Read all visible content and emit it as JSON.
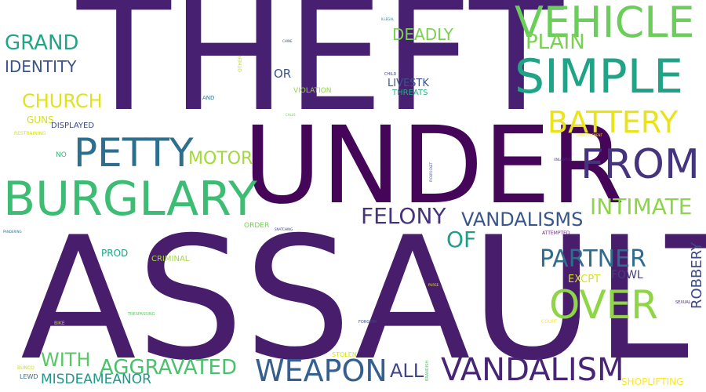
{
  "words": [
    {
      "text": "THEFT",
      "color": "#482072"
    },
    {
      "text": "ASSAULT",
      "color": "#471d6c"
    },
    {
      "text": "UNDER",
      "color": "#450559"
    },
    {
      "text": "VEHICLE",
      "color": "#6cce5a"
    },
    {
      "text": "SIMPLE",
      "color": "#20a386"
    },
    {
      "text": "PLAIN",
      "color": "#7ad151"
    },
    {
      "text": "GRAND",
      "color": "#21a585"
    },
    {
      "text": "DEADLY",
      "color": "#7ad151"
    },
    {
      "text": "IDENTITY",
      "color": "#3b528b"
    },
    {
      "text": "CHURCH",
      "color": "#e0e31c"
    },
    {
      "text": "BATTERY",
      "color": "#e8e419"
    },
    {
      "text": "PETTY",
      "color": "#2d6f8e"
    },
    {
      "text": "FROM",
      "color": "#46337e"
    },
    {
      "text": "BURGLARY",
      "color": "#3dbc74"
    },
    {
      "text": "MOTOR",
      "color": "#a2da37"
    },
    {
      "text": "INTIMATE",
      "color": "#8bd646"
    },
    {
      "text": "FELONY",
      "color": "#46337e"
    },
    {
      "text": "VANDALISMS",
      "color": "#39568c"
    },
    {
      "text": "OF",
      "color": "#1f9e89"
    },
    {
      "text": "PARTNER",
      "color": "#2f6c8e"
    },
    {
      "text": "OVER",
      "color": "#8ed645"
    },
    {
      "text": "WEAPON",
      "color": "#355f8d"
    },
    {
      "text": "VANDALISM",
      "color": "#482475"
    },
    {
      "text": "AGGRAVATED",
      "color": "#4ac16d"
    },
    {
      "text": "WITH",
      "color": "#58c765"
    },
    {
      "text": "ALL",
      "color": "#404588"
    },
    {
      "text": "MISDEAMEANOR",
      "color": "#1f988b"
    },
    {
      "text": "ROBBERY",
      "color": "#3e4a89"
    },
    {
      "text": "SHOPLIFTING",
      "color": "#fde725"
    },
    {
      "text": "EXCPT",
      "color": "#d2e21b"
    },
    {
      "text": "FOWL",
      "color": "#433e85"
    },
    {
      "text": "LIVESTK",
      "color": "#3a538b"
    },
    {
      "text": "OR",
      "color": "#3b528b"
    },
    {
      "text": "THREATS",
      "color": "#27ad81"
    },
    {
      "text": "VIOLATION",
      "color": "#95d840"
    },
    {
      "text": "GUNS",
      "color": "#d8e219"
    },
    {
      "text": "DISPLAYED",
      "color": "#3e4989"
    },
    {
      "text": "PROD",
      "color": "#1fa088"
    },
    {
      "text": "CRIMINAL",
      "color": "#a5db36"
    },
    {
      "text": "ORDER",
      "color": "#73d056"
    },
    {
      "text": "NO",
      "color": "#35b779"
    },
    {
      "text": "RESTRAINING",
      "color": "#d5e21a"
    },
    {
      "text": "AND",
      "color": "#2a788e"
    },
    {
      "text": "STOLEN",
      "color": "#d5e21a"
    },
    {
      "text": "LEWD",
      "color": "#2c728e"
    },
    {
      "text": "BUNCO",
      "color": "#c2df23"
    },
    {
      "text": "BIKE",
      "color": "#b8de29"
    },
    {
      "text": "TRESPASSING",
      "color": "#5ec962"
    },
    {
      "text": "ATTEMPTED",
      "color": "#6a2f83"
    },
    {
      "text": "FORGERY",
      "color": "#3d4e8a"
    },
    {
      "text": "COURT",
      "color": "#fde725"
    },
    {
      "text": "SEXUAL",
      "color": "#472d7b"
    },
    {
      "text": "OTHER",
      "color": "#b8de29"
    },
    {
      "text": "CHILD",
      "color": "#414487"
    },
    {
      "text": "CALLS",
      "color": "#7ad151"
    },
    {
      "text": "CHINE",
      "color": "#3b528b"
    },
    {
      "text": "ILLEGAL",
      "color": "#25858e"
    },
    {
      "text": "EMBEZZLEMENT",
      "color": "#fde725"
    },
    {
      "text": "PANDERING",
      "color": "#2c728e"
    },
    {
      "text": "UNLAWFUL",
      "color": "#472d7b"
    },
    {
      "text": "PICKPOCKET",
      "color": "#3b528b"
    },
    {
      "text": "BRANDISH",
      "color": "#4ac16d"
    },
    {
      "text": "PURSE",
      "color": "#dde318"
    },
    {
      "text": "SNATCHING",
      "color": "#414487"
    }
  ]
}
